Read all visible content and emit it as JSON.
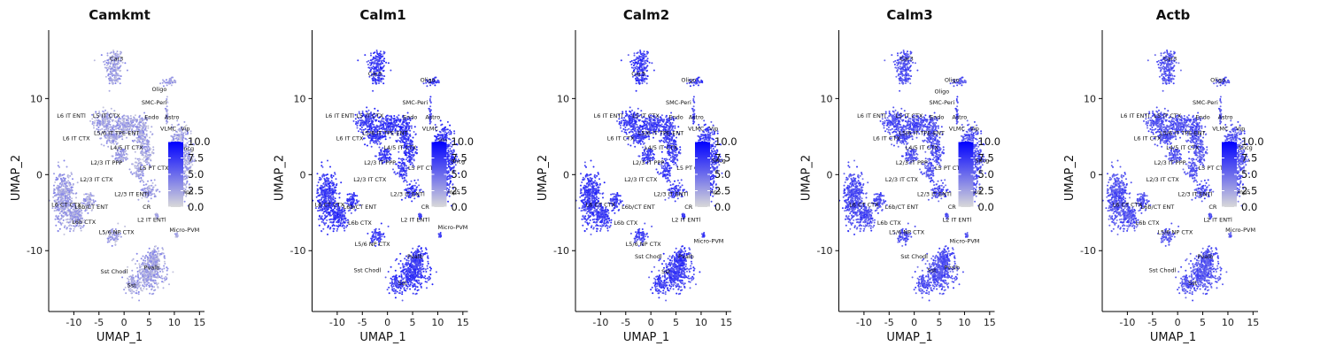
{
  "chart_data": [
    {
      "type": "scatter",
      "title": "Camkmt",
      "xlabel": "UMAP_1",
      "ylabel": "UMAP_2",
      "xlim": [
        -15,
        16
      ],
      "ylim": [
        -18,
        19
      ],
      "xticks": [
        "-10",
        "-5",
        "0",
        "5",
        "10",
        "15"
      ],
      "yticks": [
        "-10",
        "0",
        "10"
      ],
      "legend": {
        "min": 0,
        "max": 10,
        "ticks": [
          "0.0",
          "2.5",
          "5.0",
          "7.5",
          "10.0"
        ],
        "low_color": "#d9d9d9",
        "high_color": "#0000ff",
        "placement": "right"
      },
      "intensity": 0.25,
      "cluster_labels": [
        {
          "text": "Car3",
          "x": -1.5,
          "y": 15
        },
        {
          "text": "Oligo",
          "x": 7,
          "y": 11
        },
        {
          "text": "SMC-Peri",
          "x": 6,
          "y": 9.2
        },
        {
          "text": "L6 IT ENTl",
          "x": -10.5,
          "y": 7.5
        },
        {
          "text": "L5 IT CTX",
          "x": -3.5,
          "y": 7.5
        },
        {
          "text": "Endo",
          "x": 5.5,
          "y": 7.3
        },
        {
          "text": "Astro",
          "x": 9.5,
          "y": 7.3
        },
        {
          "text": "VLMC",
          "x": 8.8,
          "y": 5.8
        },
        {
          "text": "Vip",
          "x": 12.2,
          "y": 5.8
        },
        {
          "text": "L5/6 IT TPE-ENT",
          "x": -1.5,
          "y": 5.2
        },
        {
          "text": "L6 IT CTX",
          "x": -9.5,
          "y": 4.5
        },
        {
          "text": "L4/5 IT CTX",
          "x": 0.5,
          "y": 3.3
        },
        {
          "text": "Sncg",
          "x": 12.5,
          "y": 3.2
        },
        {
          "text": "L2/3 IT PPP",
          "x": -3.5,
          "y": 1.3
        },
        {
          "text": "L5 PT CTX",
          "x": 6,
          "y": 0.6
        },
        {
          "text": "L2/3 IT CTX",
          "x": -5.5,
          "y": -0.9
        },
        {
          "text": "L2/3 IT ENTl",
          "x": 1.5,
          "y": -2.8
        },
        {
          "text": "Lamp5",
          "x": 11.8,
          "y": -2.5
        },
        {
          "text": "L6 CT CTX",
          "x": -11.5,
          "y": -4.2
        },
        {
          "text": "L6b/CT ENT",
          "x": -6.5,
          "y": -4.5
        },
        {
          "text": "CR",
          "x": 4.5,
          "y": -4.5
        },
        {
          "text": "L6b CTX",
          "x": -8,
          "y": -6.5
        },
        {
          "text": "L2 IT ENTl",
          "x": 5.5,
          "y": -6.2
        },
        {
          "text": "L5/6 NP CTX",
          "x": -1.5,
          "y": -7.8
        },
        {
          "text": "Micro-PVM",
          "x": 12,
          "y": -7.5
        },
        {
          "text": "Sst Chodl",
          "x": -2,
          "y": -13
        },
        {
          "text": "Pvalb",
          "x": 5.5,
          "y": -12.5
        },
        {
          "text": "Sst",
          "x": 1.5,
          "y": -14.8
        }
      ]
    },
    {
      "type": "scatter",
      "title": "Calm1",
      "xlabel": "UMAP_1",
      "ylabel": "UMAP_2",
      "xlim": [
        -15,
        16
      ],
      "ylim": [
        -18,
        19
      ],
      "xticks": [
        "-10",
        "-5",
        "0",
        "5",
        "10",
        "15"
      ],
      "yticks": [
        "-10",
        "0",
        "10"
      ],
      "legend": {
        "min": 0,
        "max": 10,
        "ticks": [
          "0.0",
          "2.5",
          "5.0",
          "7.5",
          "10.0"
        ],
        "low_color": "#d9d9d9",
        "high_color": "#0000ff",
        "placement": "right"
      },
      "intensity": 0.72,
      "cluster_labels": [
        {
          "text": "Car3",
          "x": -2.5,
          "y": 13
        },
        {
          "text": "Oligo",
          "x": 8,
          "y": 12.2
        },
        {
          "text": "SMC-Peri",
          "x": 5.5,
          "y": 9.2
        },
        {
          "text": "L6 IT ENTl",
          "x": -9.5,
          "y": 7.5
        },
        {
          "text": "L5 IT CTX",
          "x": -3.5,
          "y": 7.5
        },
        {
          "text": "Endo",
          "x": 4.5,
          "y": 7.3
        },
        {
          "text": "Astro",
          "x": 9,
          "y": 7.3
        },
        {
          "text": "VLMC",
          "x": 8.5,
          "y": 5.8
        },
        {
          "text": "L5/6 IT TPE-ENT",
          "x": -0.5,
          "y": 5.2
        },
        {
          "text": "L6 IT CTX",
          "x": -7.5,
          "y": 4.5
        },
        {
          "text": "Vip",
          "x": 11,
          "y": 4.2
        },
        {
          "text": "L4/5 IT CTX",
          "x": 2.5,
          "y": 3.3
        },
        {
          "text": "Sncg",
          "x": 14,
          "y": 1.5
        },
        {
          "text": "L2/3 IT PPP",
          "x": -1.5,
          "y": 1.3
        },
        {
          "text": "L5 PT CTX",
          "x": 7,
          "y": 0.6
        },
        {
          "text": "L2/3 IT CTX",
          "x": -3.5,
          "y": -0.9
        },
        {
          "text": "L2/3 IT ENTl",
          "x": 4,
          "y": -2.8
        },
        {
          "text": "Lamp5",
          "x": 12.5,
          "y": -2.5
        },
        {
          "text": "L6 CT CTX",
          "x": -11.5,
          "y": -4.2
        },
        {
          "text": "L6b/CT ENT",
          "x": -5.5,
          "y": -4.5
        },
        {
          "text": "CR",
          "x": 7.5,
          "y": -4.5
        },
        {
          "text": "L6b CTX",
          "x": -5.5,
          "y": -6.6
        },
        {
          "text": "L2 IT ENTl",
          "x": 5.5,
          "y": -6.2
        },
        {
          "text": "Micro-PVM",
          "x": 13,
          "y": -7.2
        },
        {
          "text": "L5/6 NP CTX",
          "x": -3,
          "y": -9.4
        },
        {
          "text": "Sst Chodl",
          "x": -4,
          "y": -12.8
        },
        {
          "text": "Pvalb",
          "x": 5.5,
          "y": -11
        },
        {
          "text": "Sst",
          "x": 3,
          "y": -14.5
        }
      ]
    },
    {
      "type": "scatter",
      "title": "Calm2",
      "xlabel": "UMAP_1",
      "ylabel": "UMAP_2",
      "xlim": [
        -15,
        16
      ],
      "ylim": [
        -18,
        19
      ],
      "xticks": [
        "-10",
        "-5",
        "0",
        "5",
        "10",
        "15"
      ],
      "yticks": [
        "-10",
        "0",
        "10"
      ],
      "legend": {
        "min": 0,
        "max": 10,
        "ticks": [
          "0.0",
          "2.5",
          "5.0",
          "7.5",
          "10.0"
        ],
        "low_color": "#d9d9d9",
        "high_color": "#0000ff",
        "placement": "right"
      },
      "intensity": 0.7,
      "cluster_labels": [
        {
          "text": "Car3",
          "x": -2.5,
          "y": 13
        },
        {
          "text": "Oligo",
          "x": 7.5,
          "y": 12.2
        },
        {
          "text": "SMC-Peri",
          "x": 5.5,
          "y": 9.2
        },
        {
          "text": "L6 IT ENTl",
          "x": -8.5,
          "y": 7.5
        },
        {
          "text": "L5 IT CTX",
          "x": -1,
          "y": 7.5
        },
        {
          "text": "Endo",
          "x": 5,
          "y": 7.3
        },
        {
          "text": "Astro",
          "x": 9,
          "y": 7.3
        },
        {
          "text": "VLMC",
          "x": 9,
          "y": 5.8
        },
        {
          "text": "Vip",
          "x": 12.5,
          "y": 5.8
        },
        {
          "text": "L5/6 IT TPE-ENT",
          "x": 2,
          "y": 5.2
        },
        {
          "text": "L6 IT CTX",
          "x": -6,
          "y": 4.5
        },
        {
          "text": "L4/5 IT CTX",
          "x": 2,
          "y": 3.3
        },
        {
          "text": "Sncg",
          "x": 13.5,
          "y": 1.6
        },
        {
          "text": "L2/3 IT PPP",
          "x": -0.5,
          "y": 1.3
        },
        {
          "text": "L5 PT CTX",
          "x": 8,
          "y": 0.6
        },
        {
          "text": "L2/3 IT CTX",
          "x": -2,
          "y": -0.9
        },
        {
          "text": "L2/3 IT ENTl",
          "x": 4,
          "y": -2.8
        },
        {
          "text": "Lamp5",
          "x": 12,
          "y": -2.5
        },
        {
          "text": "L6 CT CTX",
          "x": -10,
          "y": -4.2
        },
        {
          "text": "L6b/CT ENT",
          "x": -2.5,
          "y": -4.5
        },
        {
          "text": "CR",
          "x": 7.5,
          "y": -4.5
        },
        {
          "text": "L6b CTX",
          "x": -5,
          "y": -6.6
        },
        {
          "text": "L2 IT ENTl",
          "x": 7,
          "y": -6.2
        },
        {
          "text": "L5/6 NP CTX",
          "x": -1.5,
          "y": -9.4
        },
        {
          "text": "Micro-PVM",
          "x": 11.5,
          "y": -9
        },
        {
          "text": "Sst Chodl",
          "x": -0.5,
          "y": -11
        },
        {
          "text": "Pvalb",
          "x": 7,
          "y": -11
        },
        {
          "text": "Sst",
          "x": 3,
          "y": -13
        }
      ]
    },
    {
      "type": "scatter",
      "title": "Calm3",
      "xlabel": "UMAP_1",
      "ylabel": "UMAP_2",
      "xlim": [
        -15,
        16
      ],
      "ylim": [
        -18,
        19
      ],
      "xticks": [
        "-10",
        "-5",
        "0",
        "5",
        "10",
        "15"
      ],
      "yticks": [
        "-10",
        "0",
        "10"
      ],
      "legend": {
        "min": 0,
        "max": 10,
        "ticks": [
          "0.0",
          "2.5",
          "5.0",
          "7.5",
          "10.0"
        ],
        "low_color": "#d9d9d9",
        "high_color": "#0000ff",
        "placement": "right"
      },
      "intensity": 0.62,
      "cluster_labels": [
        {
          "text": "Car3",
          "x": -1.5,
          "y": 15
        },
        {
          "text": "Oligo",
          "x": 7.5,
          "y": 12.2
        },
        {
          "text": "Oligo",
          "x": 5.5,
          "y": 10.7
        },
        {
          "text": "SMC-Peri",
          "x": 5.5,
          "y": 9.2
        },
        {
          "text": "L6 IT ENTl",
          "x": -8.5,
          "y": 7.5
        },
        {
          "text": "L5 IT CTX",
          "x": -1,
          "y": 7.5
        },
        {
          "text": "Endo",
          "x": 4.5,
          "y": 7.3
        },
        {
          "text": "Astro",
          "x": 9,
          "y": 7.3
        },
        {
          "text": "VLMC",
          "x": 8.5,
          "y": 5.8
        },
        {
          "text": "Vip",
          "x": 12,
          "y": 5.8
        },
        {
          "text": "L5/6 IT TPE-ENT",
          "x": 1.5,
          "y": 5.2
        },
        {
          "text": "L6 IT CTX",
          "x": -5.5,
          "y": 4.5
        },
        {
          "text": "L4/5 IT CTX",
          "x": 1.5,
          "y": 3.3
        },
        {
          "text": "Sncg",
          "x": 13.5,
          "y": 1.6
        },
        {
          "text": "L2/3 IT PPP",
          "x": -0.5,
          "y": 1.3
        },
        {
          "text": "L5 PT CTX",
          "x": 7,
          "y": 0.6
        },
        {
          "text": "L2/3 IT CTX",
          "x": -2.5,
          "y": -0.9
        },
        {
          "text": "L2/3 IT ENTl",
          "x": 4,
          "y": -2.8
        },
        {
          "text": "Lamp5",
          "x": 11.5,
          "y": -2.5
        },
        {
          "text": "L6 CT CTX",
          "x": -10,
          "y": -4.2
        },
        {
          "text": "L6b/CT ENT",
          "x": -2.5,
          "y": -4.5
        },
        {
          "text": "CR",
          "x": 7.5,
          "y": -4.5
        },
        {
          "text": "L6b CTX",
          "x": -5,
          "y": -6.6
        },
        {
          "text": "L2 IT ENTl",
          "x": 8.5,
          "y": -6.2
        },
        {
          "text": "L5/6 NP CTX",
          "x": -1.5,
          "y": -7.8
        },
        {
          "text": "Micro-PVM",
          "x": 10,
          "y": -9
        },
        {
          "text": "Sst Chodl",
          "x": 0,
          "y": -11
        },
        {
          "text": "Sst",
          "x": 3.5,
          "y": -12.8
        },
        {
          "text": "Pvalb",
          "x": 7.5,
          "y": -12.5
        }
      ]
    },
    {
      "type": "scatter",
      "title": "Actb",
      "xlabel": "UMAP_1",
      "ylabel": "UMAP_2",
      "xlim": [
        -15,
        16
      ],
      "ylim": [
        -18,
        19
      ],
      "xticks": [
        "-10",
        "-5",
        "0",
        "5",
        "10",
        "15"
      ],
      "yticks": [
        "-10",
        "0",
        "10"
      ],
      "legend": {
        "min": 0,
        "max": 10,
        "ticks": [
          "0.0",
          "2.5",
          "5.0",
          "7.5",
          "10.0"
        ],
        "low_color": "#d9d9d9",
        "high_color": "#0000ff",
        "placement": "right"
      },
      "intensity": 0.6,
      "cluster_labels": [
        {
          "text": "Car3",
          "x": -1.5,
          "y": 15
        },
        {
          "text": "Oligo",
          "x": 8,
          "y": 12.2
        },
        {
          "text": "SMC-Peri",
          "x": 5.5,
          "y": 9.2
        },
        {
          "text": "L6 IT ENTl",
          "x": -8.5,
          "y": 7.5
        },
        {
          "text": "L5 IT CTX",
          "x": -2,
          "y": 7.5
        },
        {
          "text": "Endo",
          "x": 5,
          "y": 7.3
        },
        {
          "text": "Astro",
          "x": 9.5,
          "y": 7.3
        },
        {
          "text": "VLMC",
          "x": 8.5,
          "y": 5.8
        },
        {
          "text": "Vip",
          "x": 12.5,
          "y": 5.8
        },
        {
          "text": "L5/6 IT TPE-ENT",
          "x": 1,
          "y": 5.2
        },
        {
          "text": "L6 IT CTX",
          "x": -6,
          "y": 4.5
        },
        {
          "text": "L4/5 IT CTX",
          "x": 1,
          "y": 3.3
        },
        {
          "text": "Sncg",
          "x": 13.5,
          "y": 3.3
        },
        {
          "text": "L2/3 IT PPP",
          "x": -1.5,
          "y": 1.3
        },
        {
          "text": "L5 PT CTX",
          "x": 7,
          "y": 0.6
        },
        {
          "text": "L2/3 IT CTX",
          "x": -3,
          "y": -0.9
        },
        {
          "text": "L2/3 IT ENTl",
          "x": 3.5,
          "y": -2.8
        },
        {
          "text": "Lamp5",
          "x": 12.5,
          "y": -2.5
        },
        {
          "text": "L6 CT CTX",
          "x": -10,
          "y": -4.2
        },
        {
          "text": "L6b/CT ENT",
          "x": -4,
          "y": -4.5
        },
        {
          "text": "CR",
          "x": 7,
          "y": -4.5
        },
        {
          "text": "L6b CTX",
          "x": -6,
          "y": -6.6
        },
        {
          "text": "L2 IT ENTl",
          "x": 8,
          "y": -6.2
        },
        {
          "text": "L5/6 NP CTX",
          "x": -0.5,
          "y": -7.8
        },
        {
          "text": "Micro-PVM",
          "x": 12.5,
          "y": -7.5
        },
        {
          "text": "Pvalb",
          "x": 5.5,
          "y": -11
        },
        {
          "text": "Sst Chodl",
          "x": -3,
          "y": -12.8
        },
        {
          "text": "Sst",
          "x": 3,
          "y": -14.5
        }
      ]
    }
  ]
}
